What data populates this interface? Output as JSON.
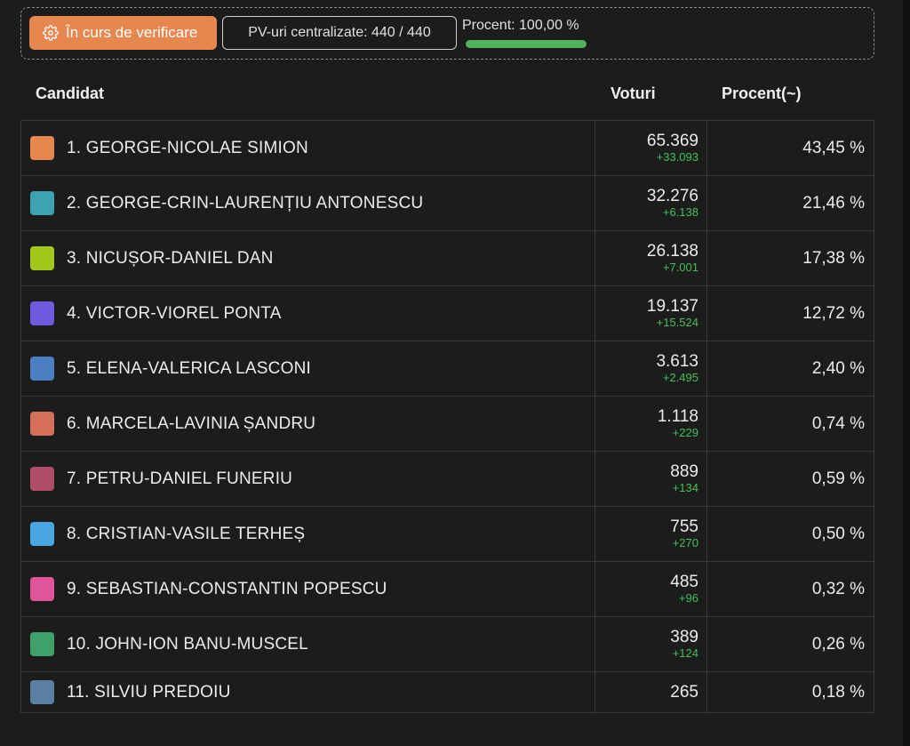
{
  "status": {
    "button_label": "În curs de verificare",
    "pv_text": "PV-uri centralizate: 440 / 440",
    "percent_label": "Procent: 100,00 %",
    "percent_value": 100
  },
  "columns": {
    "candidate": "Candidat",
    "votes": "Voturi",
    "percent": "Procent(~)"
  },
  "rows": [
    {
      "name": "1. GEORGE-NICOLAE SIMION",
      "votes": "65.369",
      "delta": "+33.093",
      "percent": "43,45 %",
      "color": "#e5874f"
    },
    {
      "name": "2. GEORGE-CRIN-LAURENȚIU ANTONESCU",
      "votes": "32.276",
      "delta": "+6.138",
      "percent": "21,46 %",
      "color": "#3ea3b0"
    },
    {
      "name": "3. NICUȘOR-DANIEL DAN",
      "votes": "26.138",
      "delta": "+7.001",
      "percent": "17,38 %",
      "color": "#a3c81a"
    },
    {
      "name": "4. VICTOR-VIOREL PONTA",
      "votes": "19.137",
      "delta": "+15.524",
      "percent": "12,72 %",
      "color": "#6f5ae0"
    },
    {
      "name": "5. ELENA-VALERICA LASCONI",
      "votes": "3.613",
      "delta": "+2.495",
      "percent": "2,40 %",
      "color": "#4a7fc1"
    },
    {
      "name": "6. MARCELA-LAVINIA ȘANDRU",
      "votes": "1.118",
      "delta": "+229",
      "percent": "0,74 %",
      "color": "#d5705a"
    },
    {
      "name": "7. PETRU-DANIEL FUNERIU",
      "votes": "889",
      "delta": "+134",
      "percent": "0,59 %",
      "color": "#b04e6a"
    },
    {
      "name": "8. CRISTIAN-VASILE TERHEȘ",
      "votes": "755",
      "delta": "+270",
      "percent": "0,50 %",
      "color": "#4aa6e0"
    },
    {
      "name": "9. SEBASTIAN-CONSTANTIN POPESCU",
      "votes": "485",
      "delta": "+96",
      "percent": "0,32 %",
      "color": "#e0559a"
    },
    {
      "name": "10. JOHN-ION BANU-MUSCEL",
      "votes": "389",
      "delta": "+124",
      "percent": "0,26 %",
      "color": "#3fa06a"
    },
    {
      "name": "11. SILVIU PREDOIU",
      "votes": "265",
      "delta": "",
      "percent": "0,18 %",
      "color": "#5a7fa0"
    }
  ]
}
